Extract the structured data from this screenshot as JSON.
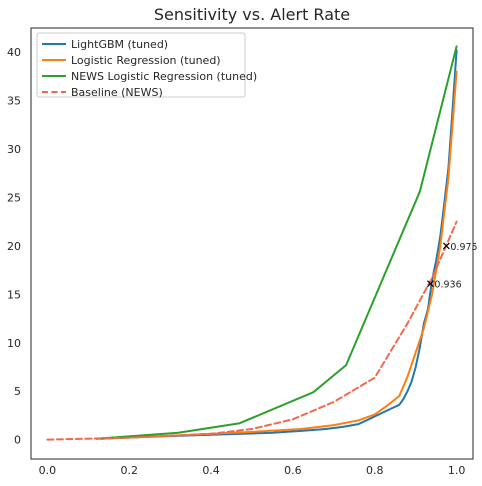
{
  "chart_data": {
    "type": "line",
    "title": "Sensitivity vs. Alert Rate",
    "xlabel": "",
    "ylabel": "",
    "xlim": [
      -0.04,
      1.04
    ],
    "ylim": [
      -2.0,
      42.5
    ],
    "xticks": [
      0.0,
      0.2,
      0.4,
      0.6,
      0.8,
      1.0
    ],
    "xtick_labels": [
      "0.0",
      "0.2",
      "0.4",
      "0.6",
      "0.8",
      "1.0"
    ],
    "yticks": [
      0,
      5,
      10,
      15,
      20,
      25,
      30,
      35,
      40
    ],
    "ytick_labels": [
      "0",
      "5",
      "10",
      "15",
      "20",
      "25",
      "30",
      "35",
      "40"
    ],
    "grid": false,
    "legend_position": "top-left",
    "series": [
      {
        "name": "LightGBM (tuned)",
        "color": "#1f77b4",
        "style": "solid",
        "x": [
          0.13,
          0.25,
          0.4,
          0.55,
          0.62,
          0.68,
          0.72,
          0.76,
          0.78,
          0.8,
          0.82,
          0.84,
          0.86,
          0.87,
          0.88,
          0.89,
          0.9,
          0.91,
          0.92,
          0.93,
          0.94,
          0.95,
          0.96,
          0.97,
          0.98,
          0.99,
          1.0
        ],
        "y": [
          0.1,
          0.3,
          0.5,
          0.7,
          0.9,
          1.1,
          1.3,
          1.6,
          2.0,
          2.4,
          2.8,
          3.2,
          3.6,
          4.2,
          5.0,
          6.0,
          7.5,
          9.5,
          12.0,
          13.5,
          16.5,
          18.5,
          21.0,
          24.5,
          28.0,
          34.0,
          40.2
        ]
      },
      {
        "name": "Logistic Regression (tuned)",
        "color": "#ff7f0e",
        "style": "solid",
        "x": [
          0.12,
          0.3,
          0.5,
          0.62,
          0.7,
          0.76,
          0.8,
          0.83,
          0.86,
          0.88,
          0.9,
          0.92,
          0.94,
          0.96,
          0.98,
          1.0
        ],
        "y": [
          0.1,
          0.4,
          0.8,
          1.1,
          1.5,
          2.0,
          2.6,
          3.5,
          4.5,
          6.5,
          9.0,
          11.5,
          15.0,
          20.0,
          27.0,
          38.0
        ]
      },
      {
        "name": "NEWS Logistic Regression (tuned)",
        "color": "#2ca02c",
        "style": "solid",
        "x": [
          0.12,
          0.32,
          0.47,
          0.65,
          0.73,
          0.91,
          1.0
        ],
        "y": [
          0.1,
          0.7,
          1.7,
          4.9,
          7.7,
          25.6,
          40.6
        ]
      },
      {
        "name": "Baseline (NEWS)",
        "color": "#f2694e",
        "style": "dashed",
        "x": [
          0.0,
          0.2,
          0.4,
          0.5,
          0.6,
          0.7,
          0.8,
          0.88,
          0.94,
          1.0
        ],
        "y": [
          0.0,
          0.2,
          0.6,
          1.1,
          2.1,
          3.9,
          6.4,
          12.0,
          16.7,
          22.5
        ]
      }
    ],
    "annotations": [
      {
        "text": "0.975",
        "x": 0.975,
        "y": 20.0,
        "marker": "x"
      },
      {
        "text": "0.936",
        "x": 0.936,
        "y": 16.1,
        "marker": "x"
      }
    ]
  }
}
